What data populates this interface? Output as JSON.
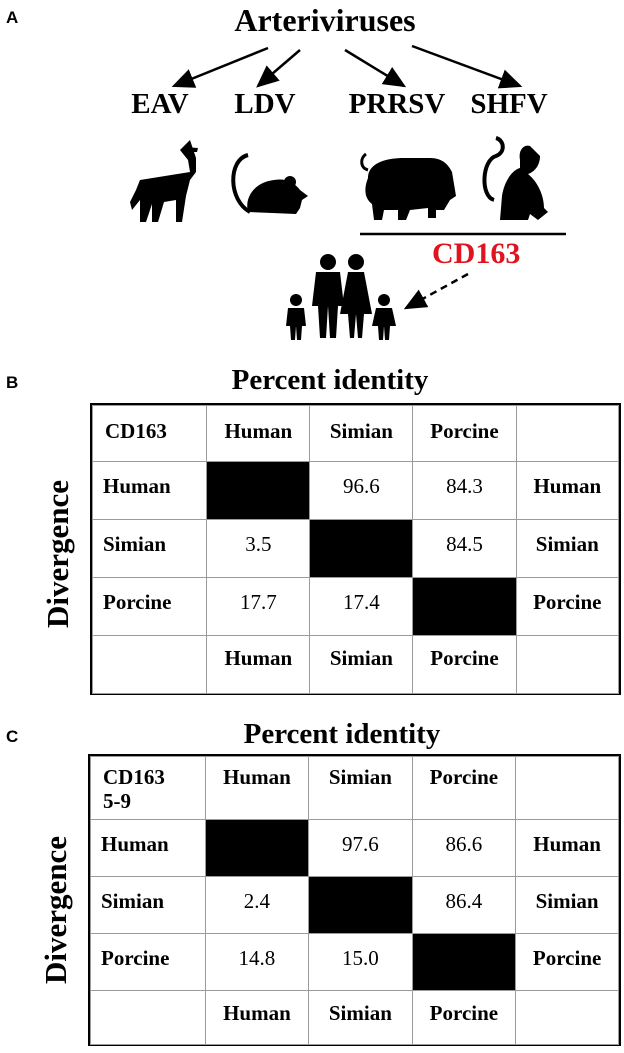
{
  "panel_a": {
    "letter": "A",
    "title": "Arteriviruses",
    "viruses": [
      "EAV",
      "LDV",
      "PRRSV",
      "SHFV"
    ],
    "receptor": "CD163",
    "icons": [
      "horse-icon",
      "mouse-icon",
      "pig-icon",
      "monkey-icon",
      "family-icon"
    ],
    "receptor_color": "#e0141e"
  },
  "panel_b": {
    "letter": "B",
    "title": "Percent identity",
    "side_label": "Divergence",
    "corner": "CD163",
    "col_headers": [
      "Human",
      "Simian",
      "Porcine"
    ],
    "rows": [
      {
        "label": "Human",
        "cells": [
          "",
          "96.6",
          "84.3"
        ],
        "right": "Human"
      },
      {
        "label": "Simian",
        "cells": [
          "3.5",
          "",
          "84.5"
        ],
        "right": "Simian"
      },
      {
        "label": "Porcine",
        "cells": [
          "17.7",
          "17.4",
          ""
        ],
        "right": "Porcine"
      }
    ],
    "footer": [
      "Human",
      "Simian",
      "Porcine"
    ]
  },
  "panel_c": {
    "letter": "C",
    "title": "Percent identity",
    "side_label": "Divergence",
    "corner_line1": "CD163",
    "corner_line2": "5-9",
    "col_headers": [
      "Human",
      "Simian",
      "Porcine"
    ],
    "rows": [
      {
        "label": "Human",
        "cells": [
          "",
          "97.6",
          "86.6"
        ],
        "right": "Human"
      },
      {
        "label": "Simian",
        "cells": [
          "2.4",
          "",
          "86.4"
        ],
        "right": "Simian"
      },
      {
        "label": "Porcine",
        "cells": [
          "14.8",
          "15.0",
          ""
        ],
        "right": "Porcine"
      }
    ],
    "footer": [
      "Human",
      "Simian",
      "Porcine"
    ]
  }
}
